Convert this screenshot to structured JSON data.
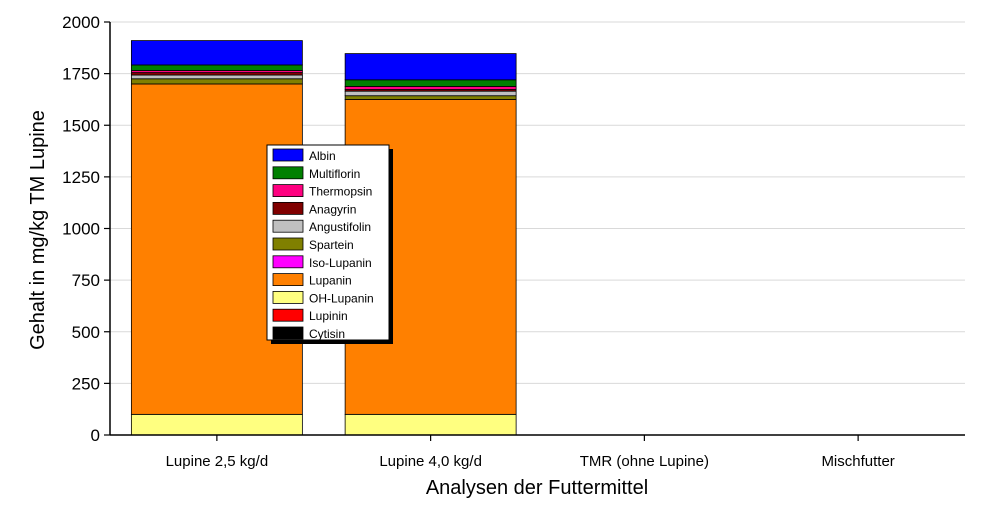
{
  "chart_data": {
    "type": "bar",
    "stacked": true,
    "title": "",
    "xlabel": "Analysen der Futtermittel",
    "ylabel": "Gehalt in mg/kg TM Lupine",
    "ylim": [
      0,
      2000
    ],
    "yticks": [
      0,
      250,
      500,
      750,
      1000,
      1250,
      1500,
      1750,
      2000
    ],
    "grid": true,
    "legend_position": "center-left",
    "categories": [
      "Lupine 2,5 kg/d",
      "Lupine 4,0 kg/d",
      "TMR (ohne Lupine)",
      "Mischfutter"
    ],
    "series": [
      {
        "name": "Cytisin",
        "color": "#000000",
        "values": [
          0,
          0,
          0,
          0
        ]
      },
      {
        "name": "Lupinin",
        "color": "#ff0000",
        "values": [
          0,
          0,
          0,
          0
        ]
      },
      {
        "name": "OH-Lupanin",
        "color": "#ffff80",
        "values": [
          100,
          100,
          0,
          0
        ]
      },
      {
        "name": "Lupanin",
        "color": "#ff8000",
        "values": [
          1600,
          1525,
          0,
          0
        ]
      },
      {
        "name": "Iso-Lupanin",
        "color": "#ff00ff",
        "values": [
          0,
          0,
          0,
          0
        ]
      },
      {
        "name": "Spartein",
        "color": "#808000",
        "values": [
          25,
          18,
          0,
          0
        ]
      },
      {
        "name": "Angustifolin",
        "color": "#c0c0c0",
        "values": [
          18,
          22,
          0,
          0
        ]
      },
      {
        "name": "Anagyrin",
        "color": "#800000",
        "values": [
          12,
          8,
          0,
          0
        ]
      },
      {
        "name": "Thermopsin",
        "color": "#ff0080",
        "values": [
          10,
          15,
          0,
          0
        ]
      },
      {
        "name": "Multiflorin",
        "color": "#008000",
        "values": [
          27,
          32,
          0,
          0
        ]
      },
      {
        "name": "Albin",
        "color": "#0000ff",
        "values": [
          118,
          127,
          0,
          0
        ]
      }
    ],
    "legend_order": [
      "Albin",
      "Multiflorin",
      "Thermopsin",
      "Anagyrin",
      "Angustifolin",
      "Spartein",
      "Iso-Lupanin",
      "Lupanin",
      "OH-Lupanin",
      "Lupinin",
      "Cytisin"
    ]
  }
}
